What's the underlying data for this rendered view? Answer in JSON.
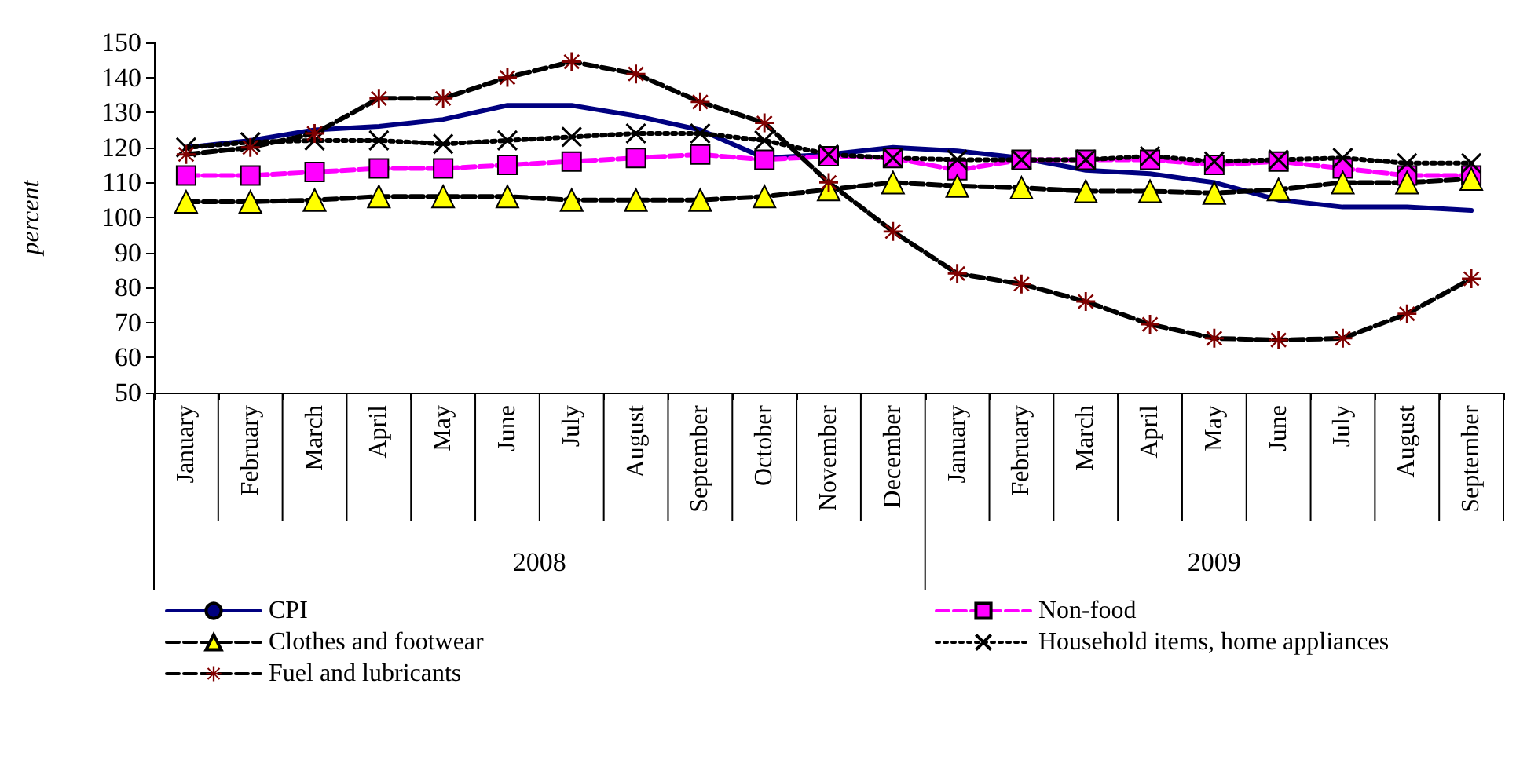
{
  "chart_data": {
    "type": "line",
    "ylabel": "percent",
    "categories": [
      "January",
      "February",
      "March",
      "April",
      "May",
      "June",
      "July",
      "August",
      "September",
      "October",
      "November",
      "December",
      "January",
      "February",
      "March",
      "April",
      "May",
      "June",
      "July",
      "August",
      "September"
    ],
    "annotations": [
      "2008",
      "2009"
    ],
    "ylim": [
      50,
      150
    ],
    "yticks": [
      50,
      60,
      70,
      80,
      90,
      100,
      110,
      120,
      130,
      140,
      150
    ],
    "grid": false,
    "legend": "bottom",
    "series": [
      {
        "name": "CPI",
        "color": "#000080",
        "marker": "none",
        "line_style": "solid",
        "values": [
          120,
          122,
          125,
          126,
          128,
          132,
          132,
          129,
          125,
          117,
          118,
          120,
          119,
          117,
          113.5,
          112.5,
          110,
          105,
          103,
          103,
          102
        ]
      },
      {
        "name": "Non-food",
        "color": "#ff00ff",
        "marker": "square",
        "line_style": "dashed",
        "values": [
          112,
          112,
          113,
          114,
          114,
          115,
          116,
          117,
          118,
          116.5,
          117.5,
          117,
          113.5,
          116.5,
          116.5,
          116.5,
          115,
          116,
          114,
          112,
          112
        ]
      },
      {
        "name": "Clothes and footwear",
        "color": "#000000",
        "colors": [
          "#ffff00",
          "#ffff00",
          "#ffff00",
          "#ffff00",
          "#ffff00",
          "#ffff00",
          "#ffff00",
          "#ffff00",
          "#ffff00",
          "#ffff00",
          "#ffff00",
          "#ffff00",
          "#ffff00",
          "#ffff00",
          "#ffff00",
          "#ffff00",
          "#ffff00",
          "#ffff00",
          "#ffff00",
          "#ffff00",
          "#ffff00"
        ],
        "marker": "triangle",
        "line_style": "dashed",
        "values": [
          104.5,
          104.5,
          105,
          106,
          106,
          106,
          105,
          105,
          105,
          106,
          108,
          110,
          109,
          108.5,
          107.5,
          107.5,
          107,
          108,
          110,
          110,
          111
        ]
      },
      {
        "name": "Household items, home appliances",
        "color": "#000000",
        "marker": "cross",
        "line_style": "dotted",
        "values": [
          120,
          121.5,
          122,
          122,
          121,
          122,
          123,
          124,
          124,
          122,
          118,
          117,
          116.5,
          116.5,
          116.5,
          117.5,
          116,
          116.5,
          117,
          115.5,
          115.5
        ]
      },
      {
        "name": "Fuel and lubricants",
        "color": "#000000",
        "colors": [
          "#800000",
          "#800000",
          "#800000",
          "#800000",
          "#800000",
          "#800000",
          "#800000",
          "#800000",
          "#800000",
          "#800000",
          "#800000",
          "#800000",
          "#800000",
          "#800000",
          "#800000",
          "#800000",
          "#800000",
          "#800000",
          "#800000",
          "#800000",
          "#800000"
        ],
        "marker": "star",
        "line_style": "dashed",
        "values": [
          118,
          120,
          124,
          134,
          134,
          140,
          144.5,
          141,
          133,
          127,
          110,
          96,
          84,
          81,
          76,
          69.5,
          65.5,
          65,
          65.5,
          72.5,
          82.5
        ]
      }
    ]
  }
}
